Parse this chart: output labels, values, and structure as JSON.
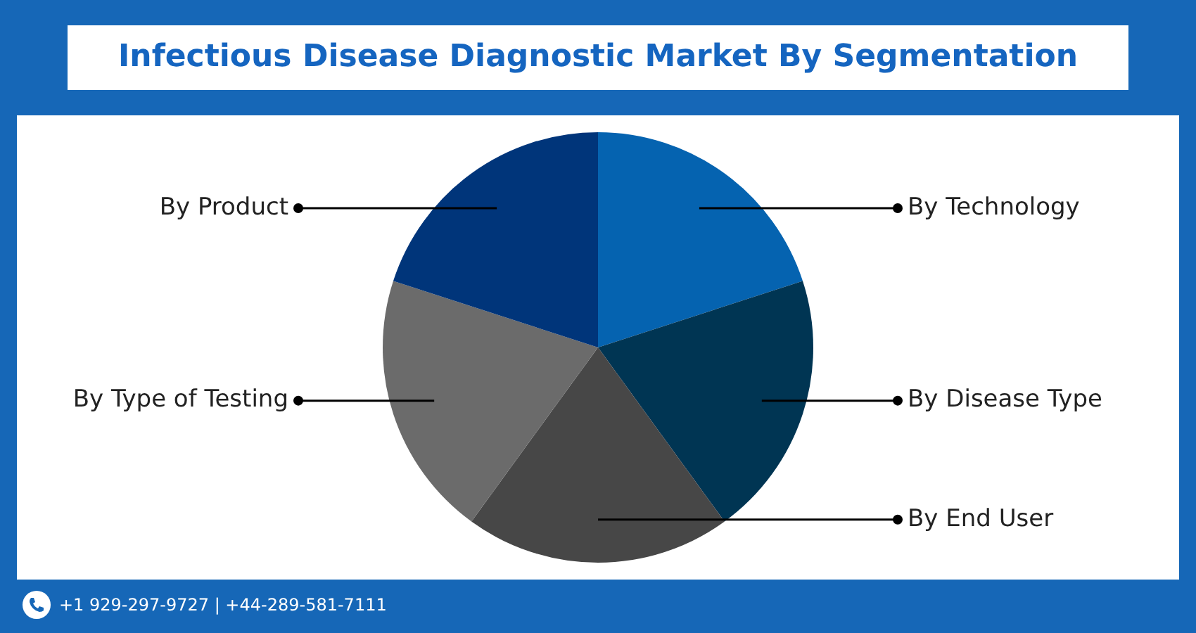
{
  "chart_data": {
    "type": "pie",
    "title": "Infectious Disease Diagnostic Market By Segmentation",
    "categories": [
      "By Technology",
      "By Disease Type",
      "By End User",
      "By Type of Testing",
      "By Product"
    ],
    "values": [
      20,
      20,
      20,
      20,
      20
    ],
    "colors": [
      "#0563b0",
      "#003553",
      "#474747",
      "#6b6b6b",
      "#00357a"
    ],
    "legend": false,
    "annotations": [
      "+1 929-297-9727 | +44-289-581-7111"
    ]
  }
}
